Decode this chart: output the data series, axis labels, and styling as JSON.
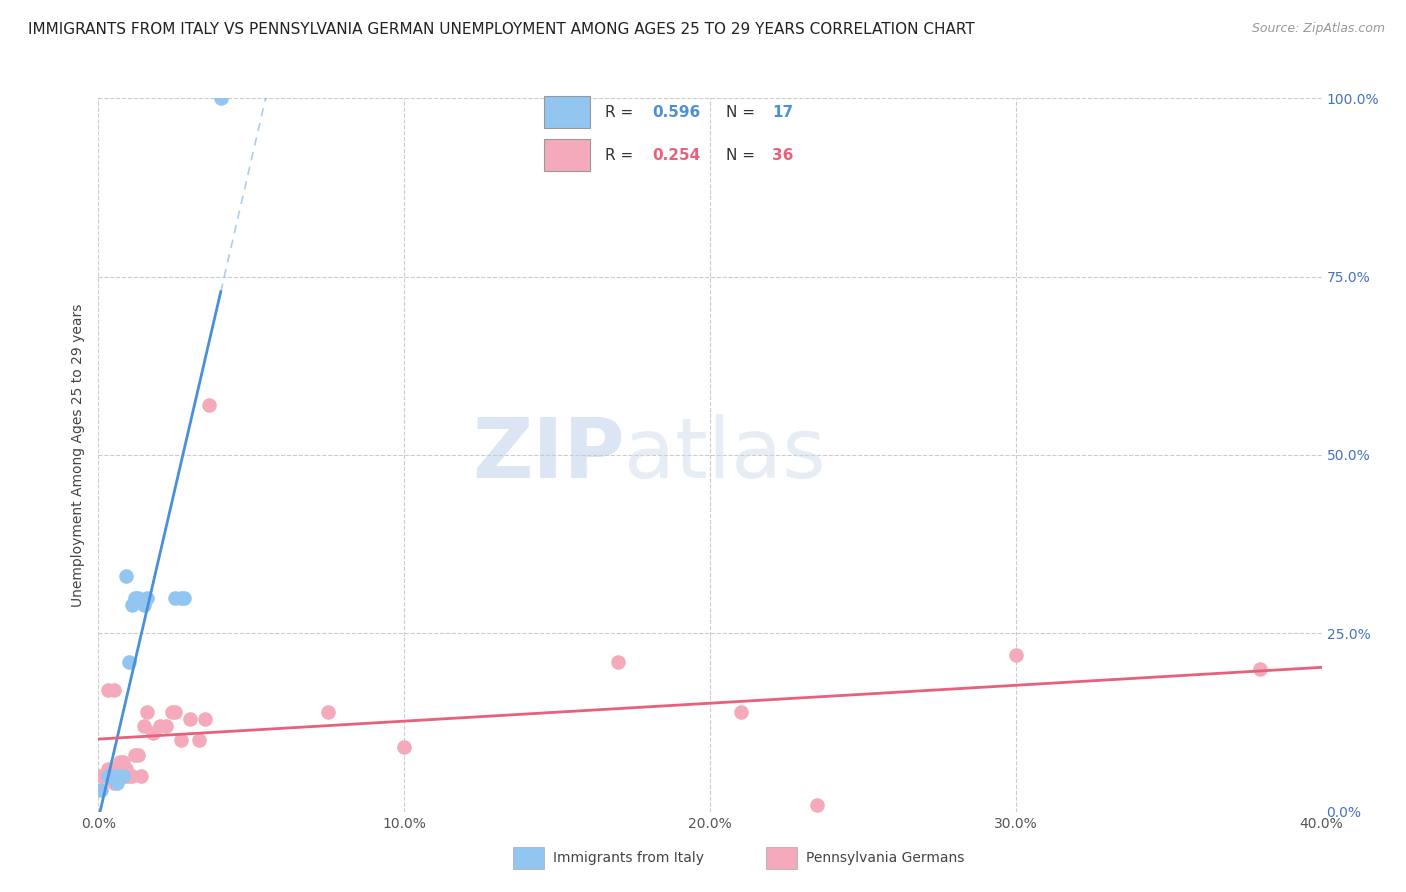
{
  "title": "IMMIGRANTS FROM ITALY VS PENNSYLVANIA GERMAN UNEMPLOYMENT AMONG AGES 25 TO 29 YEARS CORRELATION CHART",
  "source": "Source: ZipAtlas.com",
  "ylabel_left": "Unemployment Among Ages 25 to 29 years",
  "legend_label_italy": "Immigrants from Italy",
  "legend_label_pa": "Pennsylvania Germans",
  "R_italy": "0.596",
  "N_italy": "17",
  "R_pa": "0.254",
  "N_pa": "36",
  "italy_color": "#92C5F0",
  "pa_color": "#F5AABC",
  "italy_line_color": "#4A90D9",
  "pa_line_color": "#E8607A",
  "italy_scatter_x": [
    0.001,
    0.003,
    0.005,
    0.006,
    0.007,
    0.008,
    0.009,
    0.01,
    0.011,
    0.012,
    0.013,
    0.015,
    0.016,
    0.025,
    0.027,
    0.028,
    0.04
  ],
  "italy_scatter_y": [
    0.03,
    0.05,
    0.05,
    0.04,
    0.05,
    0.05,
    0.33,
    0.21,
    0.29,
    0.3,
    0.3,
    0.29,
    0.3,
    0.3,
    0.3,
    0.3,
    1.0
  ],
  "pa_scatter_x": [
    0.001,
    0.002,
    0.003,
    0.003,
    0.004,
    0.005,
    0.005,
    0.006,
    0.007,
    0.008,
    0.009,
    0.009,
    0.01,
    0.011,
    0.012,
    0.013,
    0.014,
    0.015,
    0.016,
    0.018,
    0.02,
    0.022,
    0.024,
    0.025,
    0.027,
    0.03,
    0.033,
    0.035,
    0.036,
    0.075,
    0.1,
    0.17,
    0.21,
    0.235,
    0.3,
    0.38
  ],
  "pa_scatter_y": [
    0.05,
    0.05,
    0.06,
    0.17,
    0.05,
    0.04,
    0.17,
    0.06,
    0.07,
    0.07,
    0.05,
    0.06,
    0.05,
    0.05,
    0.08,
    0.08,
    0.05,
    0.12,
    0.14,
    0.11,
    0.12,
    0.12,
    0.14,
    0.14,
    0.1,
    0.13,
    0.1,
    0.13,
    0.57,
    0.14,
    0.09,
    0.21,
    0.14,
    0.01,
    0.22,
    0.2
  ],
  "xlim": [
    0.0,
    0.4
  ],
  "ylim": [
    0.0,
    1.0
  ],
  "xticks": [
    0.0,
    0.1,
    0.2,
    0.3,
    0.4
  ],
  "yticks": [
    0.0,
    0.25,
    0.5,
    0.75,
    1.0
  ],
  "xtick_labels": [
    "0.0%",
    "10.0%",
    "20.0%",
    "30.0%",
    "40.0%"
  ],
  "ytick_labels_right": [
    "0.0%",
    "25.0%",
    "50.0%",
    "75.0%",
    "100.0%"
  ],
  "watermark_zip": "ZIP",
  "watermark_atlas": "atlas",
  "background_color": "#ffffff",
  "grid_color": "#cccccc",
  "title_fontsize": 11,
  "source_fontsize": 9,
  "axis_label_fontsize": 10,
  "tick_fontsize": 10
}
